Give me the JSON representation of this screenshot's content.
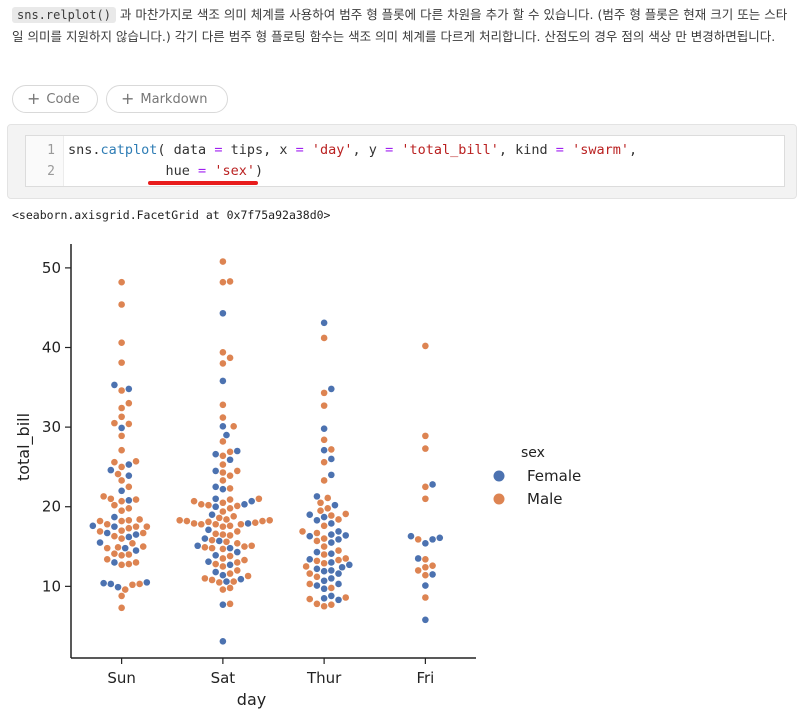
{
  "markdown": {
    "code_inline": "sns.relplot()",
    "text_rest": " 과 마찬가지로 색조 의미 체계를 사용하여 범주 형 플롯에 다른 차원을 추가 할 수 있습니다. (범주 형 플롯은 현재 크기 또는 스타일 의미를 지원하지 않습니다.) 각기 다른 범주 형 플로팅 함수는 색조 의미 체계를 다르게 처리합니다. 산점도의 경우 점의 색상 만 변경하면됩니다."
  },
  "toolbar": {
    "add_code_label": "Code",
    "add_markdown_label": "Markdown"
  },
  "cell": {
    "line_numbers": [
      "1",
      "2"
    ],
    "line1": {
      "p1": "sns.",
      "fn": "catplot",
      "p2": "( data ",
      "op1": "=",
      "p3": " tips, x ",
      "op2": "=",
      "p4": " ",
      "s1": "'day'",
      "p5": ", y ",
      "op3": "=",
      "p6": " ",
      "s2": "'total_bill'",
      "p7": ", kind ",
      "op4": "=",
      "p8": " ",
      "s3": "'swarm'",
      "p9": ","
    },
    "line2": {
      "p1": "            hue ",
      "op1": "=",
      "p2": " ",
      "s1": "'sex'",
      "p3": ")"
    }
  },
  "output": {
    "repr": "<seaborn.axisgrid.FacetGrid at 0x7f75a92a38d0>"
  },
  "colors": {
    "female": "#4c72b0",
    "male": "#dd8452",
    "underline": "#e81c1c"
  },
  "chart_data": {
    "type": "scatter",
    "kind": "swarm",
    "xlabel": "day",
    "ylabel": "total_bill",
    "categories": [
      "Sun",
      "Sat",
      "Thur",
      "Fri"
    ],
    "yticks": [
      10,
      20,
      30,
      40,
      50
    ],
    "ylim": [
      1,
      53
    ],
    "legend": {
      "title": "sex",
      "placement": "right",
      "entries": [
        "Female",
        "Male"
      ]
    },
    "series": [
      {
        "name": "Female",
        "color": "#4c72b0",
        "values": {
          "Sun": [
            35.3,
            34.8,
            29.9,
            25.3,
            24.6,
            23.9,
            22.0,
            20.8,
            18.7,
            17.6,
            17.5,
            16.7,
            16.5,
            16.2,
            15.5,
            14.8,
            14.5,
            13.0,
            10.5,
            10.4,
            10.3,
            9.9
          ],
          "Sat": [
            44.3,
            35.8,
            30.1,
            29.0,
            27.0,
            26.6,
            25.9,
            24.5,
            22.5,
            22.2,
            21.0,
            20.7,
            20.3,
            20.0,
            19.0,
            17.9,
            17.1,
            16.0,
            15.7,
            15.1,
            14.8,
            14.3,
            13.9,
            13.1,
            12.7,
            11.8,
            11.4,
            10.9,
            10.6,
            7.7,
            3.1
          ],
          "Thur": [
            43.1,
            34.8,
            29.8,
            27.1,
            26.0,
            24.0,
            21.3,
            20.2,
            19.0,
            18.7,
            18.3,
            17.9,
            16.9,
            16.5,
            16.4,
            16.3,
            15.9,
            15.5,
            14.3,
            14.1,
            13.4,
            13.0,
            12.7,
            12.4,
            12.2,
            12.0,
            11.9,
            11.6,
            11.0,
            10.7,
            10.3,
            10.1,
            9.7,
            8.8,
            8.5,
            8.3
          ],
          "Fri": [
            22.8,
            16.3,
            16.1,
            15.9,
            15.4,
            13.5,
            11.5,
            10.1,
            5.8
          ]
        }
      },
      {
        "name": "Male",
        "color": "#dd8452",
        "values": {
          "Sun": [
            48.2,
            45.4,
            40.6,
            38.1,
            34.6,
            33.0,
            32.4,
            31.3,
            30.5,
            30.4,
            28.9,
            27.1,
            25.7,
            25.6,
            25.0,
            24.1,
            23.3,
            22.5,
            21.3,
            21.0,
            20.9,
            20.7,
            20.2,
            19.8,
            19.5,
            18.4,
            18.3,
            18.2,
            18.2,
            17.8,
            17.5,
            17.5,
            17.3,
            17.0,
            16.9,
            16.7,
            16.3,
            16.0,
            15.4,
            15.0,
            14.9,
            14.8,
            14.1,
            14.0,
            13.9,
            13.4,
            13.0,
            12.8,
            12.7,
            10.3,
            10.2,
            9.6,
            8.8,
            7.3
          ],
          "Sat": [
            50.8,
            48.3,
            48.2,
            39.4,
            38.7,
            38.0,
            32.8,
            31.2,
            30.1,
            28.2,
            26.9,
            26.4,
            25.3,
            24.5,
            24.3,
            23.9,
            23.3,
            22.3,
            21.0,
            20.9,
            20.7,
            20.5,
            20.3,
            20.2,
            20.1,
            19.8,
            19.4,
            18.8,
            18.6,
            18.4,
            18.3,
            18.3,
            18.2,
            18.2,
            18.1,
            18.0,
            17.9,
            17.8,
            17.8,
            17.8,
            17.6,
            17.5,
            16.9,
            16.6,
            16.5,
            16.4,
            15.8,
            15.6,
            15.4,
            15.1,
            15.0,
            14.9,
            14.8,
            14.7,
            13.8,
            13.5,
            13.3,
            13.0,
            12.8,
            12.5,
            12.0,
            11.6,
            11.3,
            11.0,
            10.8,
            10.6,
            10.5,
            9.8,
            9.6,
            7.8
          ],
          "Thur": [
            41.2,
            34.3,
            32.7,
            28.4,
            27.2,
            25.6,
            23.3,
            21.1,
            20.5,
            19.8,
            19.5,
            19.1,
            18.9,
            18.4,
            17.6,
            16.9,
            16.7,
            16.0,
            15.7,
            15.0,
            14.5,
            14.0,
            13.5,
            13.3,
            13.2,
            12.9,
            12.5,
            11.6,
            11.2,
            10.3,
            9.8,
            8.6,
            8.4,
            7.8,
            7.7,
            7.5
          ],
          "Fri": [
            40.2,
            28.9,
            27.3,
            22.5,
            21.0,
            15.9,
            13.4,
            12.6,
            12.4,
            12.0,
            11.4,
            8.6
          ]
        }
      }
    ]
  }
}
